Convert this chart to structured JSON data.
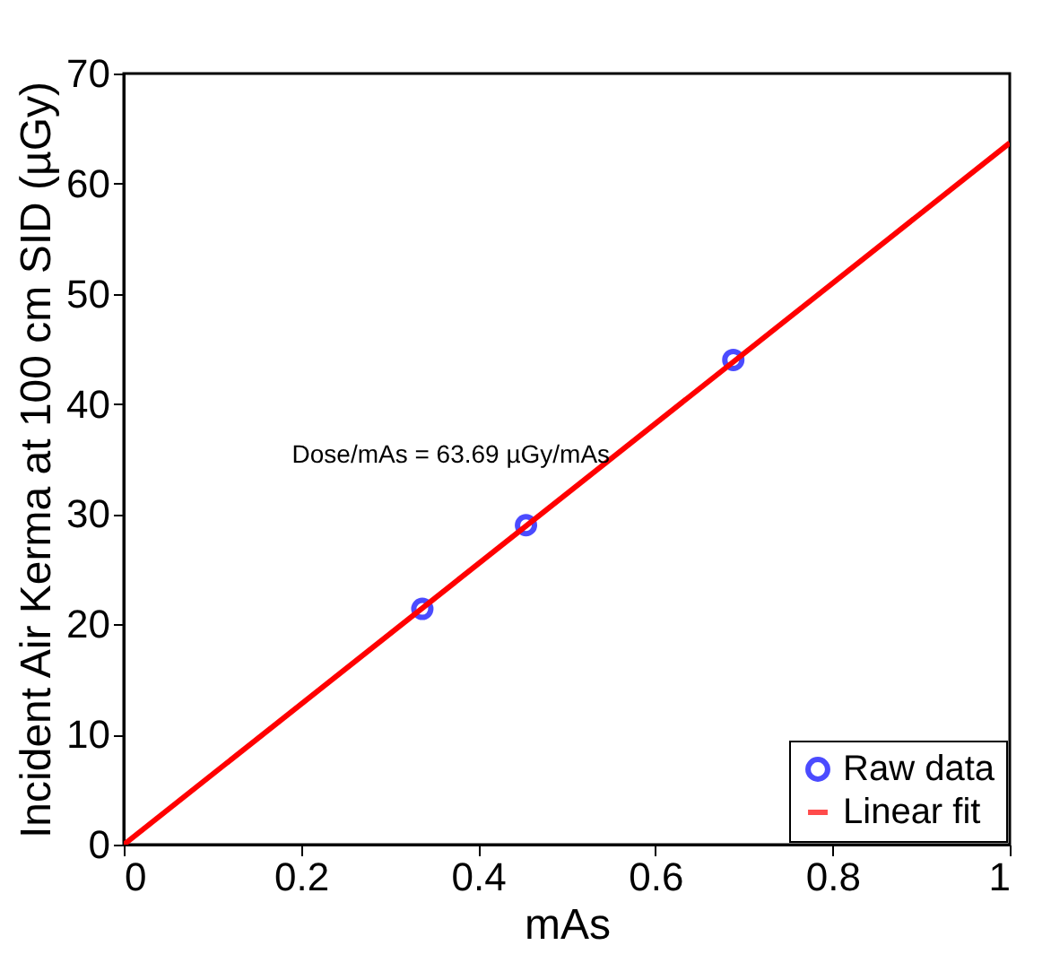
{
  "chart_data": {
    "type": "scatter",
    "xlabel": "mAs",
    "ylabel": "Incident Air Kerma at 100 cm SID (µGy)",
    "annotations": [
      "Dose/mAs = 63.69 µGy/mAs"
    ],
    "xlim": [
      0,
      1
    ],
    "ylim": [
      0,
      70
    ],
    "xticks": [
      {
        "value": 0,
        "label": "0"
      },
      0.2,
      0.4,
      0.6,
      0.8,
      {
        "value": 1,
        "label": "1"
      }
    ],
    "yticks": [
      0,
      10,
      20,
      30,
      40,
      50,
      60,
      70
    ],
    "grid": false,
    "legend": "bottom right",
    "series": [
      {
        "name": "Raw data",
        "marker": "circle",
        "color": "#0000ff",
        "x": [
          0.337,
          0.454,
          0.688
        ],
        "values": [
          21.4,
          29.0,
          44.0
        ]
      },
      {
        "name": "Linear fit",
        "type": "line",
        "color": "#ff0000",
        "line_style": "solid",
        "x": [
          0,
          1
        ],
        "values": [
          0,
          63.7
        ]
      }
    ]
  }
}
